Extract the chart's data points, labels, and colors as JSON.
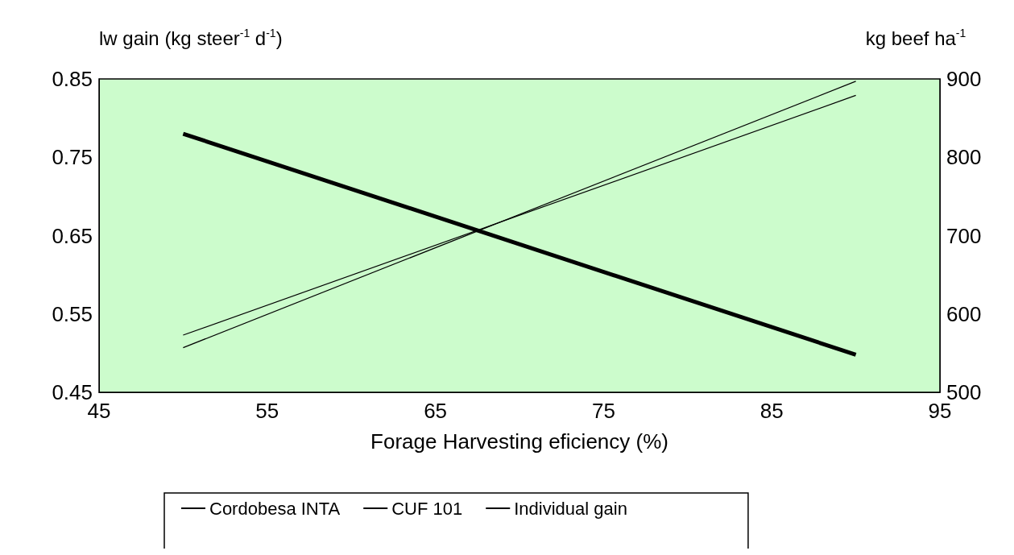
{
  "chart_data": {
    "type": "line",
    "xlabel": "Forage Harvesting eficiency (%)",
    "ylabel": "lw gain (kg steer$^{-1}$ d$^{-1}$)",
    "y2label": "kg beef ha$^{-1}$",
    "x": [
      50,
      90
    ],
    "series": [
      {
        "name": "Cordobesa INTA",
        "color": "#000000",
        "axis": "y2",
        "values": [
          557,
          897
        ]
      },
      {
        "name": "CUF 101",
        "color": "#000000",
        "axis": "y2",
        "values": [
          573,
          879
        ]
      },
      {
        "name": "Individual gain",
        "color": "#000000",
        "values": [
          0.78,
          0.498
        ]
      }
    ],
    "xlim": [
      45,
      95
    ],
    "xticks": [
      45,
      55,
      65,
      75,
      85,
      95
    ],
    "ylim": [
      0.45,
      0.85
    ],
    "yticks": [
      0.45,
      0.55,
      0.65,
      0.75,
      0.85
    ],
    "y2lim": [
      500,
      900
    ],
    "y2ticks": [
      500,
      600,
      700,
      800,
      900
    ],
    "grid": false,
    "legend": "bottom",
    "marker": "none",
    "line_style": "solid"
  }
}
